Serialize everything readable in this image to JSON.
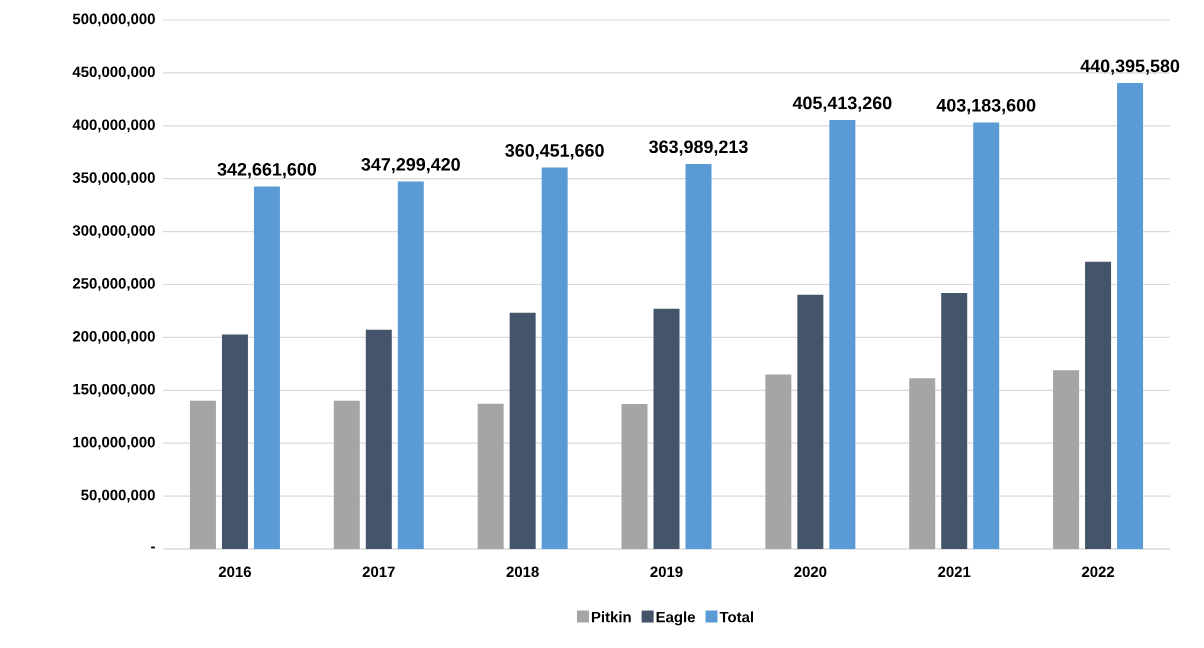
{
  "chart_data": {
    "type": "bar",
    "categories": [
      "2016",
      "2017",
      "2018",
      "2019",
      "2020",
      "2021",
      "2022"
    ],
    "series": [
      {
        "name": "Pitkin",
        "color": "#a5a5a5",
        "values": [
          140000000,
          140000000,
          137200000,
          137000000,
          165000000,
          161300000,
          169000000
        ]
      },
      {
        "name": "Eagle",
        "color": "#44546a",
        "values": [
          202700000,
          207300000,
          223300000,
          227000000,
          240400000,
          241900000,
          271400000
        ]
      },
      {
        "name": "Total",
        "color": "#5b9bd5",
        "values": [
          342661600,
          347299420,
          360451660,
          363989213,
          405413260,
          403183600,
          440395580
        ],
        "value_labels": [
          "342,661,600",
          "347,299,420",
          "360,451,660",
          "363,989,213",
          "405,413,260",
          "403,183,600",
          "440,395,580"
        ]
      }
    ],
    "ylim": [
      0,
      500000000
    ],
    "yticks": [
      {
        "value": 0,
        "label": "-"
      },
      {
        "value": 50000000,
        "label": "50,000,000"
      },
      {
        "value": 100000000,
        "label": "100,000,000"
      },
      {
        "value": 150000000,
        "label": "150,000,000"
      },
      {
        "value": 200000000,
        "label": "200,000,000"
      },
      {
        "value": 250000000,
        "label": "250,000,000"
      },
      {
        "value": 300000000,
        "label": "300,000,000"
      },
      {
        "value": 350000000,
        "label": "350,000,000"
      },
      {
        "value": 400000000,
        "label": "400,000,000"
      },
      {
        "value": 450000000,
        "label": "450,000,000"
      },
      {
        "value": 500000000,
        "label": "500,000,000"
      }
    ],
    "grid": "y",
    "legend": "bottom"
  }
}
